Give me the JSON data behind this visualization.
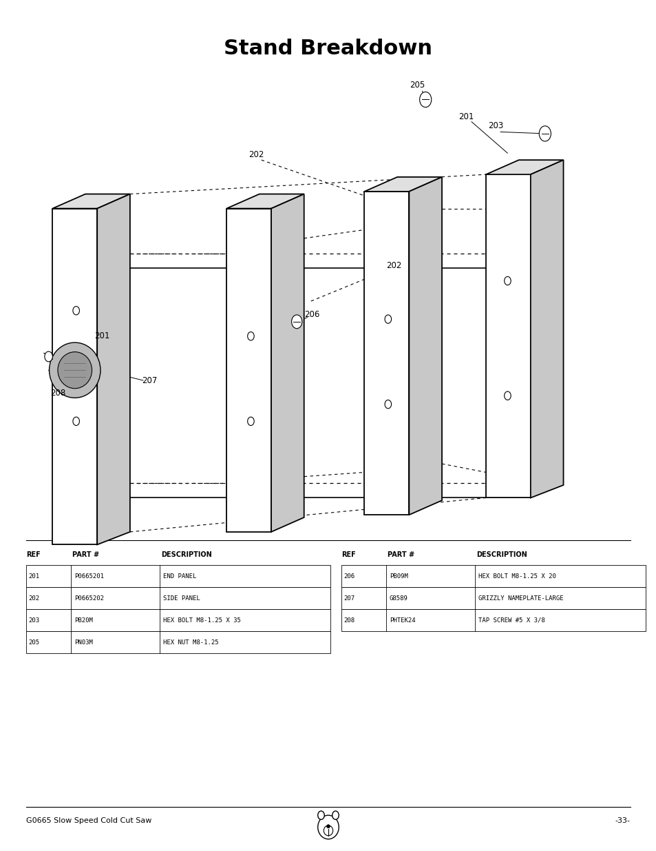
{
  "title": "Stand Breakdown",
  "title_fontsize": 22,
  "title_fontweight": "bold",
  "background_color": "#ffffff",
  "footer_left": "G0665 Slow Speed Cold Cut Saw",
  "footer_right": "-33-",
  "table_left": {
    "headers": [
      "REF",
      "PART #",
      "DESCRIPTION"
    ],
    "rows": [
      [
        "201",
        "P0665201",
        "END PANEL"
      ],
      [
        "202",
        "P0665202",
        "SIDE PANEL"
      ],
      [
        "203",
        "PB20M",
        "HEX BOLT M8-1.25 X 35"
      ],
      [
        "205",
        "PN03M",
        "HEX NUT M8-1.25"
      ]
    ]
  },
  "table_right": {
    "headers": [
      "REF",
      "PART #",
      "DESCRIPTION"
    ],
    "rows": [
      [
        "206",
        "PB09M",
        "HEX BOLT M8-1.25 X 20"
      ],
      [
        "207",
        "G8589",
        "GRIZZLY NAMEPLATE-LARGE"
      ],
      [
        "208",
        "PHTEK24",
        "TAP SCREW #5 X 3/8"
      ]
    ]
  }
}
